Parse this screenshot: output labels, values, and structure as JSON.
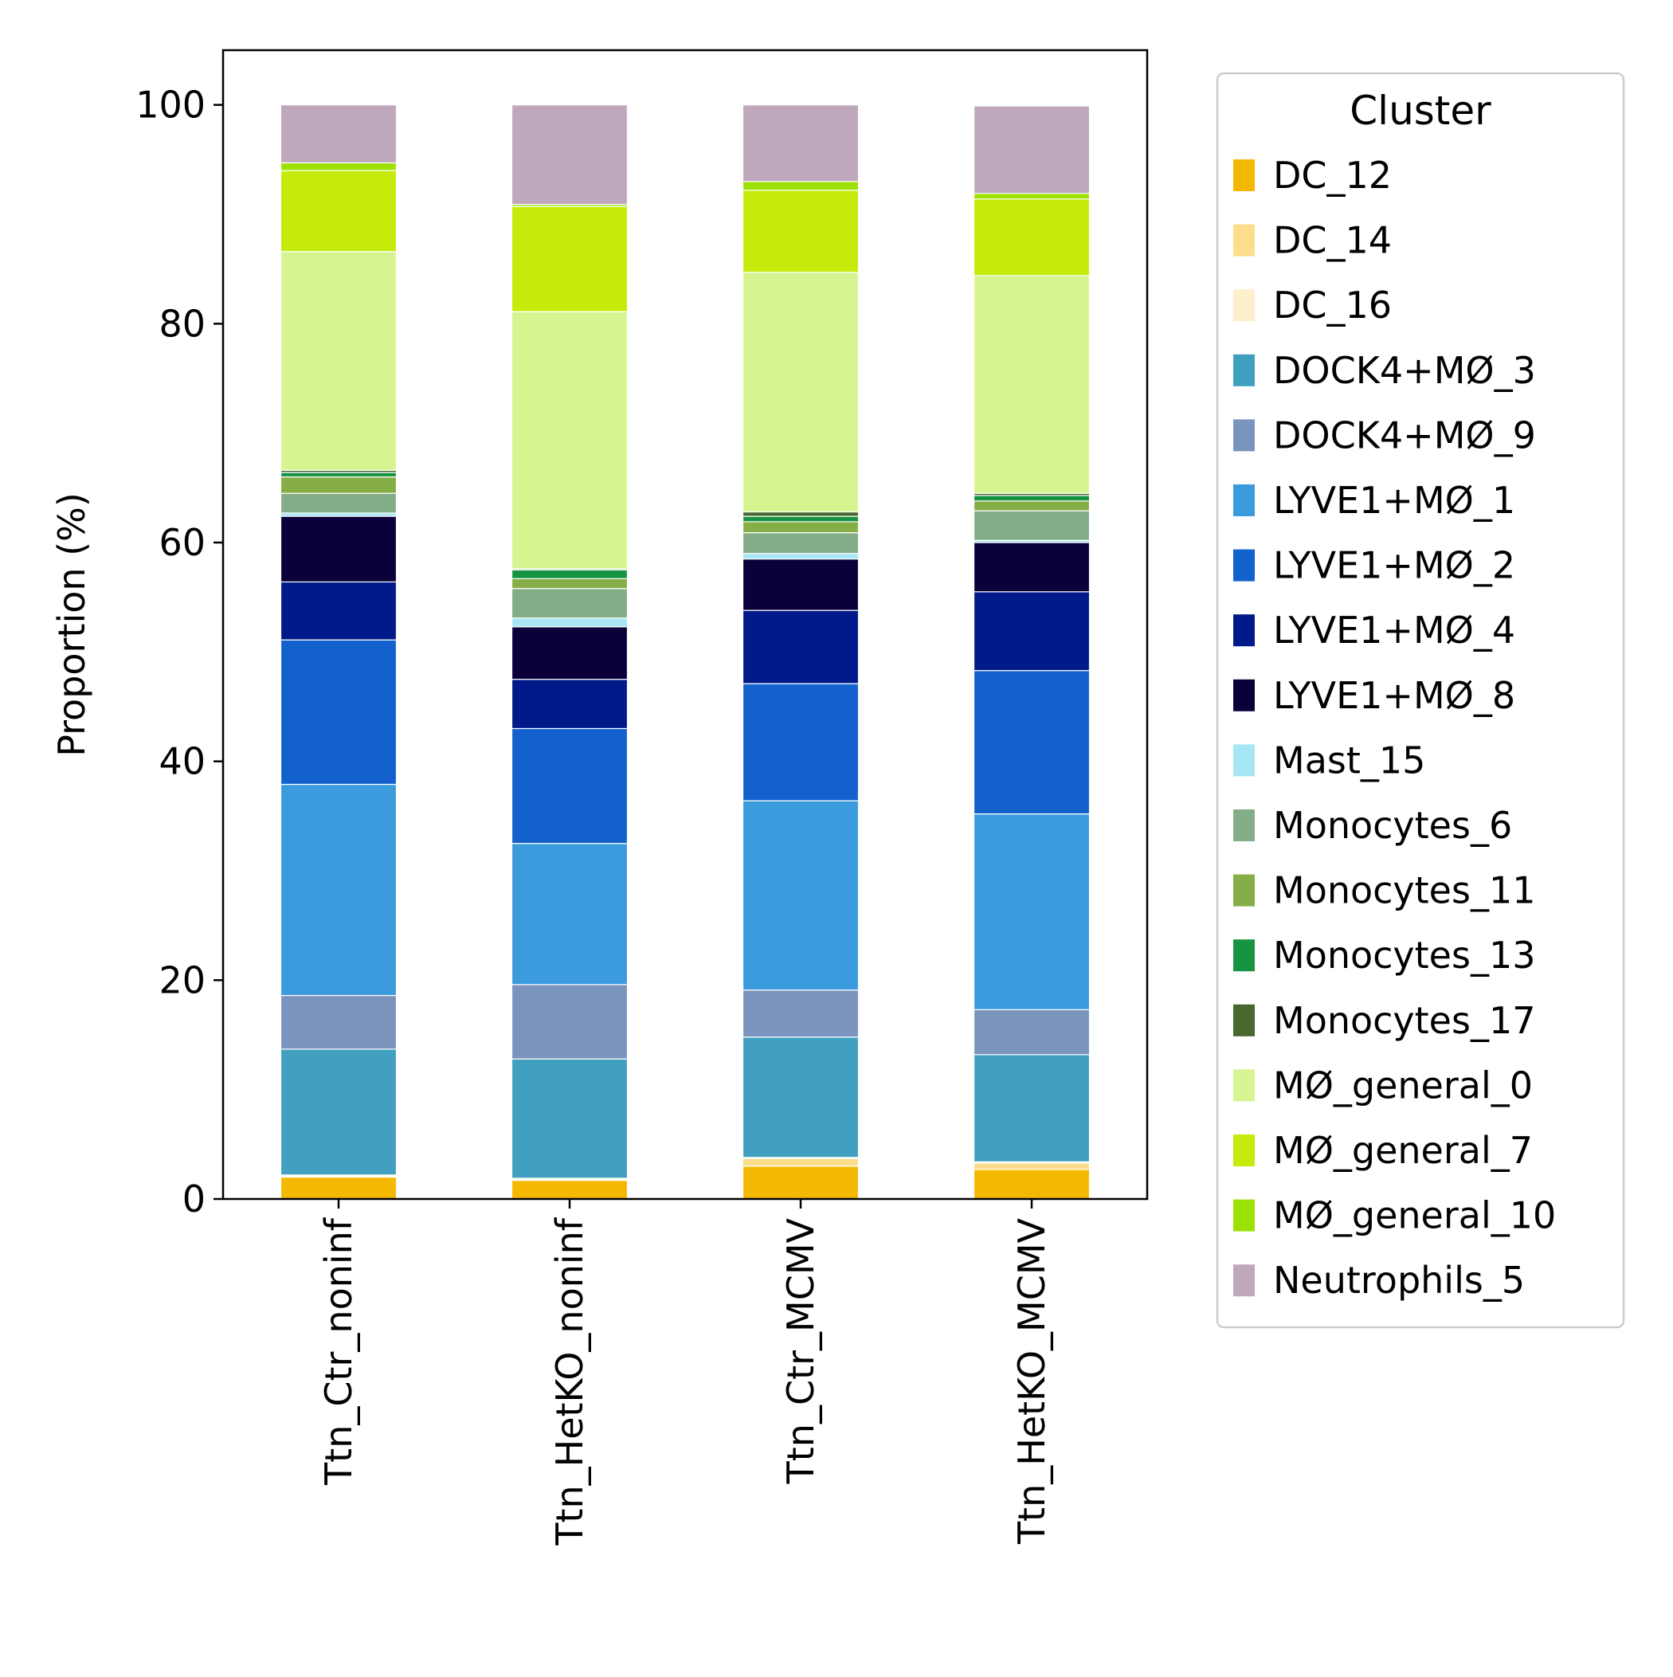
{
  "chart_data": {
    "type": "bar",
    "stacked": true,
    "title": "",
    "xlabel": "",
    "ylabel": "Proportion (%)",
    "ylim": [
      0,
      105
    ],
    "yticks": [
      0,
      20,
      40,
      60,
      80,
      100
    ],
    "grid": false,
    "categories": [
      "Ttn_Ctr_noninf",
      "Ttn_HetKO_noninf",
      "Ttn_Ctr_MCMV",
      "Ttn_HetKO_MCMV"
    ],
    "legend": {
      "title": "Cluster",
      "position": "right, outside plot"
    },
    "series": [
      {
        "name": "DC_12",
        "color": "#F5B800",
        "values": [
          2.0,
          1.7,
          3.0,
          2.7
        ]
      },
      {
        "name": "DC_14",
        "color": "#FCDD8C",
        "values": [
          0.1,
          0.1,
          0.7,
          0.6
        ]
      },
      {
        "name": "DC_16",
        "color": "#FDEFCD",
        "values": [
          0.1,
          0.1,
          0.1,
          0.1
        ]
      },
      {
        "name": "DOCK4+MØ_3",
        "color": "#41A0BF",
        "values": [
          11.5,
          10.9,
          11.0,
          9.8
        ]
      },
      {
        "name": "DOCK4+MØ_9",
        "color": "#7A94BD",
        "values": [
          4.9,
          6.8,
          4.3,
          4.1
        ]
      },
      {
        "name": "LYVE1+MØ_1",
        "color": "#3C9BDD",
        "values": [
          19.3,
          12.9,
          17.3,
          17.9
        ]
      },
      {
        "name": "LYVE1+MØ_2",
        "color": "#1261CC",
        "values": [
          13.2,
          10.5,
          10.7,
          13.1
        ]
      },
      {
        "name": "LYVE1+MØ_4",
        "color": "#001A8A",
        "values": [
          5.3,
          4.5,
          6.7,
          7.2
        ]
      },
      {
        "name": "LYVE1+MØ_8",
        "color": "#0C003B",
        "values": [
          6.0,
          4.8,
          4.7,
          4.5
        ]
      },
      {
        "name": "Mast_15",
        "color": "#A6E6F5",
        "values": [
          0.3,
          0.8,
          0.5,
          0.2
        ]
      },
      {
        "name": "Monocytes_6",
        "color": "#83AD86",
        "values": [
          1.8,
          2.7,
          1.9,
          2.7
        ]
      },
      {
        "name": "Monocytes_11",
        "color": "#86AE46",
        "values": [
          1.5,
          0.9,
          1.0,
          0.9
        ]
      },
      {
        "name": "Monocytes_13",
        "color": "#179441",
        "values": [
          0.4,
          0.8,
          0.5,
          0.5
        ]
      },
      {
        "name": "Monocytes_17",
        "color": "#48682E",
        "values": [
          0.2,
          0.1,
          0.4,
          0.2
        ]
      },
      {
        "name": "MØ_general_0",
        "color": "#D6F591",
        "values": [
          20.0,
          23.5,
          21.9,
          19.9
        ]
      },
      {
        "name": "MØ_general_7",
        "color": "#C6EA09",
        "values": [
          7.4,
          9.6,
          7.5,
          7.0
        ]
      },
      {
        "name": "MØ_general_10",
        "color": "#9DE102",
        "values": [
          0.7,
          0.2,
          0.8,
          0.5
        ]
      },
      {
        "name": "Neutrophils_5",
        "color": "#BFA8BC",
        "values": [
          5.3,
          9.1,
          7.0,
          8.0
        ]
      }
    ]
  }
}
